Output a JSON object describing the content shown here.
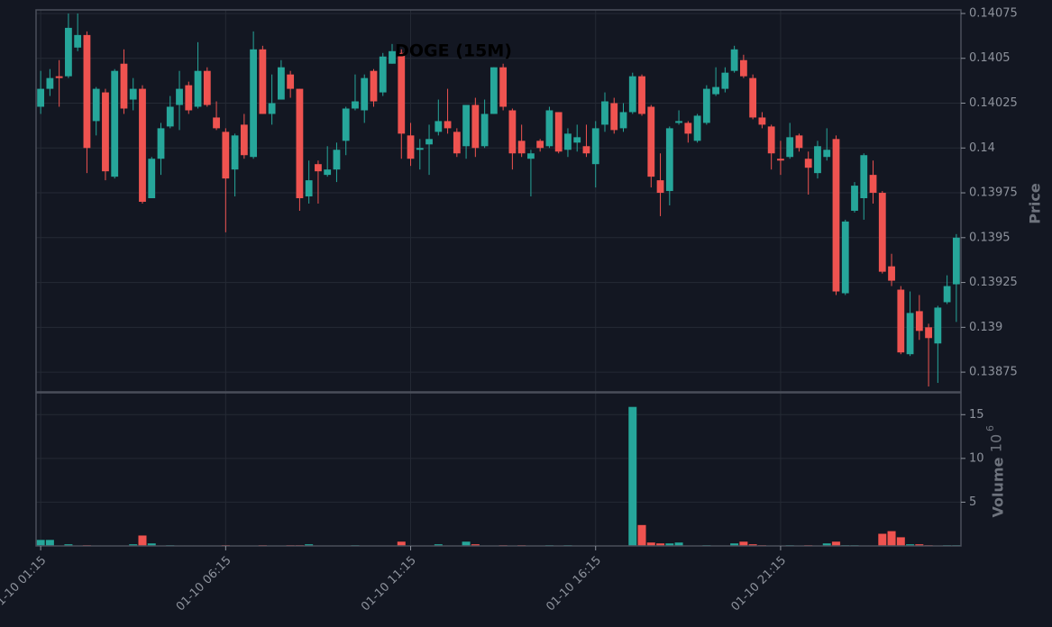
{
  "chart_data": {
    "type": "candlestick",
    "title": "DOGE (15M)",
    "y_label": "Price",
    "volume_label": "Volume",
    "volume_offset": {
      "base": "10",
      "exponent": "6"
    },
    "up_color": "#26a69a",
    "down_color": "#ef5350",
    "grid": true,
    "categories": [
      "01-10 01:15",
      null,
      null,
      null,
      null,
      null,
      null,
      null,
      null,
      null,
      null,
      null,
      null,
      null,
      null,
      null,
      null,
      null,
      null,
      null,
      "01-10 06:15",
      null,
      null,
      null,
      null,
      null,
      null,
      null,
      null,
      null,
      null,
      null,
      null,
      null,
      null,
      null,
      null,
      null,
      null,
      null,
      "01-10 11:15",
      null,
      null,
      null,
      null,
      null,
      null,
      null,
      null,
      null,
      null,
      null,
      null,
      null,
      null,
      null,
      null,
      null,
      null,
      null,
      "01-10 16:15",
      null,
      null,
      null,
      null,
      null,
      null,
      null,
      null,
      null,
      null,
      null,
      null,
      null,
      null,
      null,
      null,
      null,
      null,
      null,
      "01-10 21:15",
      null,
      null,
      null,
      null,
      null,
      null,
      null,
      null,
      null,
      null,
      null,
      null,
      null,
      null,
      null,
      null,
      null,
      null,
      null
    ],
    "open": [
      0.14023,
      0.14033,
      0.1404,
      0.1404,
      0.14056,
      0.14063,
      0.14015,
      0.14031,
      0.13984,
      0.14047,
      0.14027,
      0.14033,
      0.13972,
      0.13994,
      0.14012,
      0.14024,
      0.14035,
      0.14023,
      0.14043,
      0.14017,
      0.14009,
      0.13988,
      0.14013,
      0.13995,
      0.14055,
      0.14019,
      0.14027,
      0.14041,
      0.14033,
      0.13973,
      0.13991,
      0.13985,
      0.13988,
      0.14004,
      0.14022,
      0.14021,
      0.14043,
      0.14031,
      0.14047,
      0.14053,
      0.14007,
      0.13999,
      0.14002,
      0.14009,
      0.14015,
      0.14009,
      0.14001,
      0.14024,
      0.14001,
      0.14019,
      0.14045,
      0.14021,
      0.14004,
      0.13994,
      0.14004,
      0.14001,
      0.1402,
      0.13999,
      0.14003,
      0.14001,
      0.13991,
      0.14013,
      0.14025,
      0.14011,
      0.1402,
      0.1404,
      0.14023,
      0.13982,
      0.13976,
      0.14014,
      0.14014,
      0.14004,
      0.14014,
      0.1403,
      0.14033,
      0.14043,
      0.14049,
      0.14039,
      0.14017,
      0.14012,
      0.13994,
      0.13995,
      0.14007,
      0.13994,
      0.13986,
      0.13995,
      0.14005,
      0.13919,
      0.13965,
      0.13972,
      0.13985,
      0.13975,
      0.13934,
      0.13921,
      0.13885,
      0.13909,
      0.139,
      0.13891,
      0.13914,
      0.13924
    ],
    "high": [
      0.14043,
      0.14044,
      0.14049,
      0.14075,
      0.14075,
      0.14065,
      0.14034,
      0.14033,
      0.14044,
      0.14055,
      0.14039,
      0.14035,
      0.13995,
      0.14014,
      0.14029,
      0.14043,
      0.14037,
      0.14059,
      0.14045,
      0.14026,
      0.14011,
      0.14008,
      0.14019,
      0.14065,
      0.14057,
      0.14041,
      0.14049,
      0.14043,
      0.14033,
      0.13993,
      0.13993,
      0.14001,
      0.14003,
      0.14023,
      0.14041,
      0.14041,
      0.14044,
      0.14053,
      0.14058,
      0.14055,
      0.14014,
      0.14005,
      0.14013,
      0.14027,
      0.14033,
      0.14011,
      0.14024,
      0.14028,
      0.14027,
      0.14045,
      0.14047,
      0.14022,
      0.14013,
      0.13999,
      0.14005,
      0.14023,
      0.1402,
      0.14011,
      0.14013,
      0.14013,
      0.14015,
      0.14031,
      0.14028,
      0.14025,
      0.14042,
      0.14041,
      0.14024,
      0.13997,
      0.14012,
      0.14021,
      0.14015,
      0.14019,
      0.14035,
      0.14045,
      0.14045,
      0.14057,
      0.14052,
      0.14041,
      0.1402,
      0.14013,
      0.14004,
      0.14014,
      0.14008,
      0.13998,
      0.14004,
      0.14011,
      0.14007,
      0.1396,
      0.13981,
      0.13997,
      0.13993,
      0.13976,
      0.13941,
      0.13923,
      0.1392,
      0.13918,
      0.13902,
      0.13912,
      0.13929,
      0.13952
    ],
    "low": [
      0.14019,
      0.14029,
      0.14023,
      0.14039,
      0.14054,
      0.13986,
      0.14007,
      0.13982,
      0.13983,
      0.14019,
      0.14021,
      0.13969,
      0.13972,
      0.13985,
      0.14011,
      0.1401,
      0.14019,
      0.14022,
      0.14023,
      0.1401,
      0.13953,
      0.13973,
      0.13994,
      0.13994,
      0.14019,
      0.14013,
      0.14027,
      0.14028,
      0.13965,
      0.13969,
      0.13969,
      0.13984,
      0.13981,
      0.13996,
      0.14021,
      0.14014,
      0.14023,
      0.14029,
      0.14047,
      0.13994,
      0.1399,
      0.13988,
      0.13985,
      0.14007,
      0.14008,
      0.13995,
      0.13994,
      0.13995,
      0.14,
      0.14019,
      0.14021,
      0.13988,
      0.13995,
      0.13973,
      0.13998,
      0.14,
      0.13997,
      0.13995,
      0.13998,
      0.13995,
      0.13978,
      0.14009,
      0.14008,
      0.14009,
      0.14019,
      0.14018,
      0.13978,
      0.13962,
      0.13968,
      0.14013,
      0.14003,
      0.14003,
      0.14013,
      0.14029,
      0.14031,
      0.14042,
      0.14039,
      0.14016,
      0.14011,
      0.13988,
      0.13985,
      0.13994,
      0.13998,
      0.13974,
      0.13983,
      0.13993,
      0.13918,
      0.13918,
      0.13964,
      0.1396,
      0.13969,
      0.1393,
      0.13923,
      0.13885,
      0.13884,
      0.13893,
      0.13867,
      0.13869,
      0.13913,
      0.13903
    ],
    "close": [
      0.14033,
      0.14039,
      0.14039,
      0.14067,
      0.14063,
      0.14,
      0.14033,
      0.13987,
      0.14043,
      0.14022,
      0.14033,
      0.1397,
      0.13994,
      0.14011,
      0.14023,
      0.14033,
      0.14021,
      0.14043,
      0.14024,
      0.14011,
      0.13983,
      0.14007,
      0.13996,
      0.14055,
      0.14019,
      0.14025,
      0.14045,
      0.14033,
      0.13972,
      0.13982,
      0.13987,
      0.13988,
      0.13999,
      0.14022,
      0.14026,
      0.14039,
      0.14026,
      0.14051,
      0.14054,
      0.14008,
      0.13994,
      0.14,
      0.14005,
      0.14015,
      0.14011,
      0.13997,
      0.14024,
      0.14,
      0.14019,
      0.14045,
      0.14023,
      0.13997,
      0.13997,
      0.13997,
      0.14,
      0.14021,
      0.13998,
      0.14008,
      0.14006,
      0.13997,
      0.14011,
      0.14026,
      0.1401,
      0.1402,
      0.1404,
      0.14019,
      0.13984,
      0.13975,
      0.14011,
      0.14015,
      0.14008,
      0.14018,
      0.14033,
      0.14034,
      0.14042,
      0.14055,
      0.1404,
      0.14017,
      0.14013,
      0.13997,
      0.13993,
      0.14006,
      0.14,
      0.13989,
      0.14001,
      0.13999,
      0.1392,
      0.13959,
      0.13979,
      0.13996,
      0.13975,
      0.13931,
      0.13926,
      0.13886,
      0.13908,
      0.13898,
      0.13894,
      0.13911,
      0.13923,
      0.1395
    ],
    "volume": [
      0.7,
      0.7,
      0.05,
      0.2,
      0.05,
      0.1,
      0.05,
      0.05,
      0.05,
      0.05,
      0.2,
      1.2,
      0.3,
      0.05,
      0.1,
      0.05,
      0.05,
      0.05,
      0.05,
      0.05,
      0.1,
      0.05,
      0.05,
      0.05,
      0.1,
      0.05,
      0.05,
      0.1,
      0.1,
      0.2,
      0.05,
      0.05,
      0.05,
      0.05,
      0.1,
      0.05,
      0.05,
      0.05,
      0.05,
      0.5,
      0.05,
      0.05,
      0.05,
      0.2,
      0.05,
      0.05,
      0.5,
      0.2,
      0.05,
      0.05,
      0.1,
      0.05,
      0.1,
      0.05,
      0.05,
      0.1,
      0.05,
      0.1,
      0.05,
      0.05,
      0.05,
      0.05,
      0.05,
      0.05,
      15.9,
      2.4,
      0.4,
      0.3,
      0.3,
      0.4,
      0.05,
      0.05,
      0.1,
      0.05,
      0.05,
      0.3,
      0.5,
      0.2,
      0.1,
      0.05,
      0.05,
      0.1,
      0.05,
      0.1,
      0.05,
      0.3,
      0.5,
      0.1,
      0.1,
      0.05,
      0.05,
      1.4,
      1.7,
      1.0,
      0.2,
      0.2,
      0.1,
      0.05,
      0.1,
      0.1
    ],
    "ylim": [
      0.13864,
      0.14077
    ],
    "yticks": [
      0.13875,
      0.139,
      0.13925,
      0.1395,
      0.13975,
      0.14,
      0.14025,
      0.1405,
      0.14075
    ],
    "volume_ylim": [
      0,
      17.5
    ],
    "volume_yticks": [
      5,
      10,
      15
    ]
  }
}
